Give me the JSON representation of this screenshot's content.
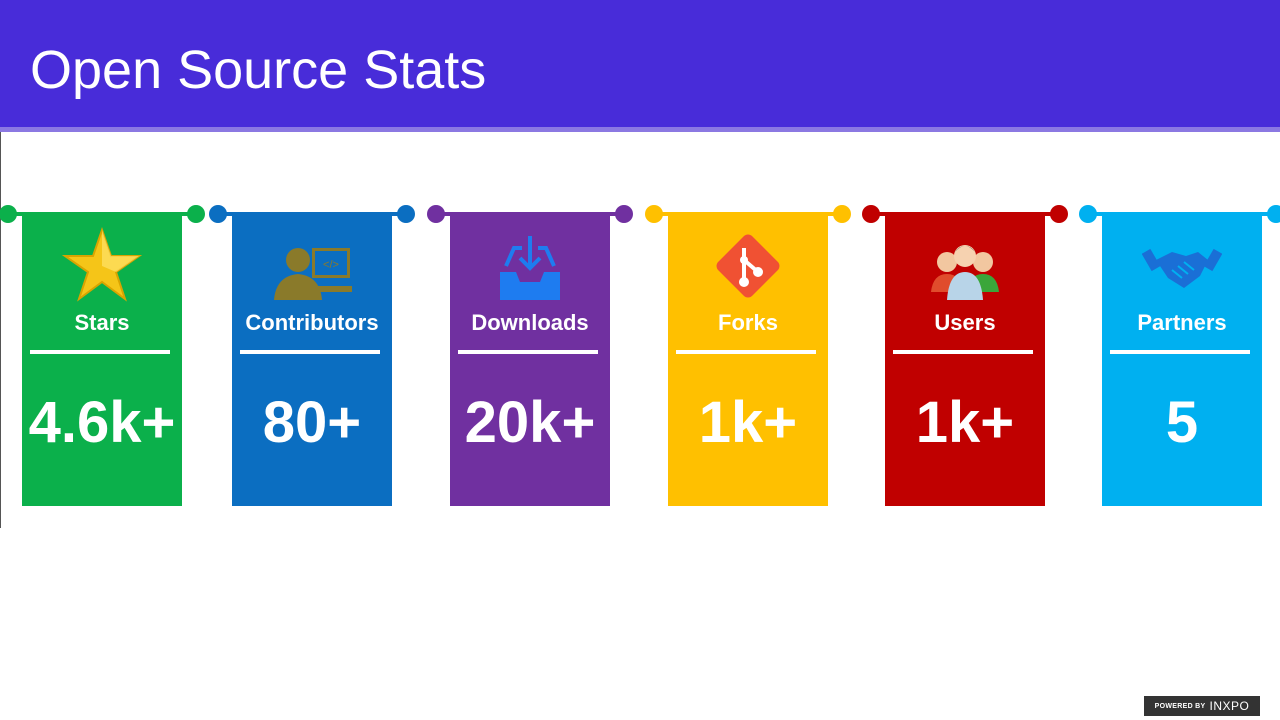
{
  "header": {
    "title": "Open Source Stats"
  },
  "cards": [
    {
      "label": "Stars",
      "value": "4.6k+",
      "color": "#0bb04b",
      "icon": "star-icon"
    },
    {
      "label": "Contributors",
      "value": "80+",
      "color": "#0b6ec1",
      "icon": "developer-icon"
    },
    {
      "label": "Downloads",
      "value": "20k+",
      "color": "#7030a0",
      "icon": "download-icon"
    },
    {
      "label": "Forks",
      "value": "1k+",
      "color": "#ffc000",
      "icon": "git-icon"
    },
    {
      "label": "Users",
      "value": "1k+",
      "color": "#c00000",
      "icon": "users-icon"
    },
    {
      "label": "Partners",
      "value": "5",
      "color": "#00b0f0",
      "icon": "handshake-icon"
    }
  ],
  "footer": {
    "powered_by": "POWERED BY",
    "brand": "INXPO"
  }
}
